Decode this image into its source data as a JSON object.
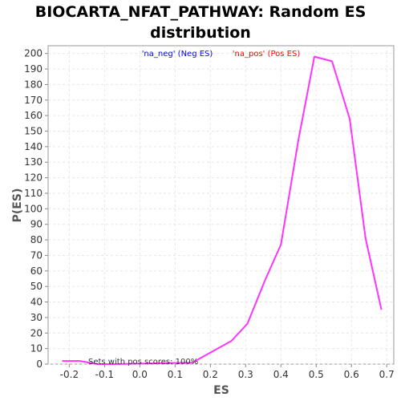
{
  "chart_data": {
    "type": "line",
    "title_lines": [
      "BIOCARTA_NFAT_PATHWAY: Random ES",
      "distribution"
    ],
    "xlabel": "ES",
    "ylabel": "P(ES)",
    "xlim": [
      -0.26,
      0.72
    ],
    "ylim": [
      0,
      205
    ],
    "xticks": [
      -0.2,
      -0.1,
      0.0,
      0.1,
      0.2,
      0.3,
      0.4,
      0.5,
      0.6,
      0.7
    ],
    "xtick_labels": [
      "-0.2",
      "-0.1",
      "0.0",
      "0.1",
      "0.2",
      "0.3",
      "0.4",
      "0.5",
      "0.6",
      "0.7"
    ],
    "yticks": [
      0,
      10,
      20,
      30,
      40,
      50,
      60,
      70,
      80,
      90,
      100,
      110,
      120,
      130,
      140,
      150,
      160,
      170,
      180,
      190,
      200
    ],
    "grid": true,
    "legend": [
      {
        "label": "'na_neg' (Neg ES)",
        "color": "#0000ff"
      },
      {
        "label": "'na_pos' (Pos ES)",
        "color": "#ff0000"
      }
    ],
    "annotation": "Sets with pos scores: 100%",
    "series": [
      {
        "color": "#ff33ff",
        "x": [
          -0.22,
          -0.17,
          -0.12,
          -0.07,
          0.15,
          0.165,
          0.26,
          0.305,
          0.355,
          0.4,
          0.45,
          0.495,
          0.545,
          0.595,
          0.64,
          0.685
        ],
        "y": [
          2,
          2,
          0,
          0,
          1,
          3,
          15,
          26,
          54,
          77,
          145,
          198,
          195,
          158,
          81,
          35
        ]
      }
    ]
  }
}
